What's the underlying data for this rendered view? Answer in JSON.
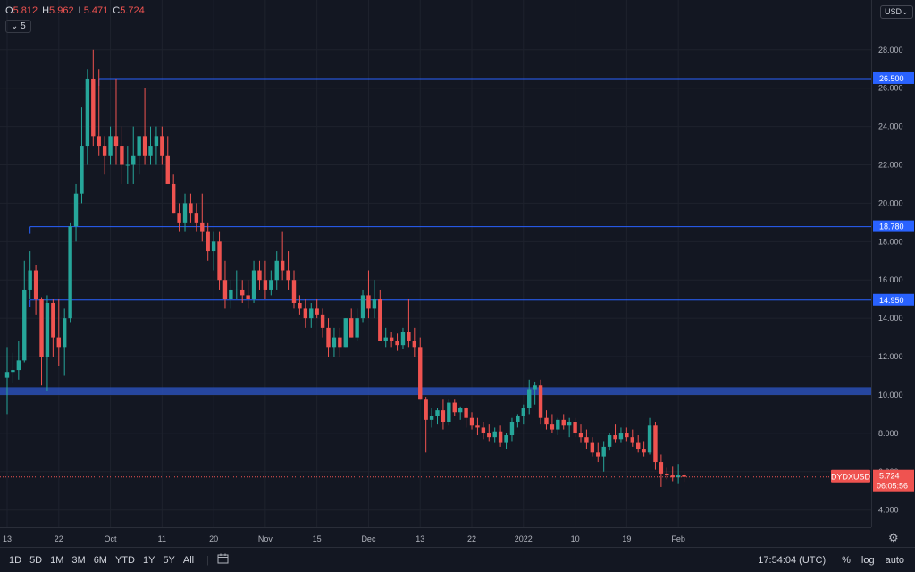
{
  "header": {
    "ohlc": [
      {
        "label": "O",
        "value": "5.812"
      },
      {
        "label": "H",
        "value": "5.962"
      },
      {
        "label": "L",
        "value": "5.471"
      },
      {
        "label": "C",
        "value": "5.724"
      }
    ],
    "interval_button": "5",
    "currency": "USD",
    "currency_chevron": "chevron-down-icon"
  },
  "chart_data": {
    "type": "candlestick",
    "symbol": "DYDXUSD",
    "last_price": "5.724",
    "countdown": "06:05:56",
    "y_ticks": [
      "28.000",
      "26.000",
      "24.000",
      "22.000",
      "20.000",
      "18.000",
      "16.000",
      "14.000",
      "12.000",
      "10.000",
      "8.000",
      "6.000",
      "4.000"
    ],
    "y_tick_values": [
      28,
      26,
      24,
      22,
      20,
      18,
      16,
      14,
      12,
      10,
      8,
      6,
      4
    ],
    "ylim": [
      3.1,
      30.6
    ],
    "x_ticks": [
      "13",
      "22",
      "Oct",
      "11",
      "20",
      "Nov",
      "15",
      "Dec",
      "13",
      "22",
      "2022",
      "10",
      "19",
      "Feb"
    ],
    "x_tick_index": [
      0,
      9,
      18,
      27,
      36,
      45,
      54,
      63,
      72,
      81,
      90,
      99,
      108,
      117
    ],
    "levels": [
      {
        "value": 26.5,
        "label": "26.500",
        "start_index": 16
      },
      {
        "value": 18.78,
        "label": "18.780",
        "start_index": 4
      },
      {
        "value": 14.95,
        "label": "14.950",
        "start_index": 4
      }
    ],
    "support_zone": [
      10.0,
      10.4
    ],
    "candles": [
      [
        10.9,
        12.5,
        9.0,
        11.2
      ],
      [
        11.2,
        12.2,
        10.6,
        11.3
      ],
      [
        11.3,
        12.8,
        10.8,
        11.8
      ],
      [
        11.8,
        17.0,
        11.7,
        15.5
      ],
      [
        15.5,
        17.5,
        15.0,
        16.5
      ],
      [
        16.5,
        16.8,
        14.2,
        15.0
      ],
      [
        15.0,
        15.1,
        10.5,
        12.0
      ],
      [
        12.0,
        15.2,
        10.2,
        14.8
      ],
      [
        14.8,
        15.0,
        12.0,
        13.0
      ],
      [
        13.0,
        15.0,
        11.5,
        12.5
      ],
      [
        12.5,
        14.5,
        11.0,
        14.0
      ],
      [
        14.0,
        19.0,
        13.8,
        18.8
      ],
      [
        18.8,
        21.0,
        18.0,
        20.5
      ],
      [
        20.5,
        25.0,
        20.0,
        23.0
      ],
      [
        23.0,
        27.0,
        22.0,
        26.5
      ],
      [
        26.5,
        28.0,
        23.0,
        23.5
      ],
      [
        23.5,
        27.0,
        22.5,
        23.0
      ],
      [
        23.0,
        23.5,
        21.5,
        22.5
      ],
      [
        22.5,
        24.0,
        22.0,
        23.5
      ],
      [
        23.5,
        26.5,
        22.0,
        23.0
      ],
      [
        23.0,
        24.0,
        21.0,
        22.0
      ],
      [
        22.0,
        23.0,
        21.0,
        22.0
      ],
      [
        22.0,
        24.0,
        21.0,
        22.5
      ],
      [
        22.5,
        23.5,
        21.5,
        23.5
      ],
      [
        23.5,
        26.0,
        22.0,
        22.5
      ],
      [
        22.5,
        24.0,
        22.0,
        23.0
      ],
      [
        23.0,
        24.0,
        22.0,
        23.5
      ],
      [
        23.5,
        24.0,
        22.0,
        22.5
      ],
      [
        22.5,
        23.5,
        21.0,
        21.0
      ],
      [
        21.0,
        21.5,
        19.5,
        19.5
      ],
      [
        19.5,
        20.0,
        18.5,
        19.0
      ],
      [
        19.0,
        20.5,
        18.5,
        20.0
      ],
      [
        20.0,
        20.5,
        19.0,
        19.5
      ],
      [
        19.5,
        20.0,
        18.5,
        19.0
      ],
      [
        19.0,
        20.5,
        18.0,
        18.5
      ],
      [
        18.5,
        19.0,
        17.0,
        17.5
      ],
      [
        17.5,
        18.5,
        16.5,
        18.0
      ],
      [
        18.0,
        18.5,
        15.5,
        16.0
      ],
      [
        16.0,
        17.0,
        14.5,
        15.0
      ],
      [
        15.0,
        16.0,
        14.5,
        15.5
      ],
      [
        15.5,
        16.5,
        15.0,
        15.5
      ],
      [
        15.5,
        16.0,
        14.8,
        15.2
      ],
      [
        15.2,
        16.0,
        14.5,
        15.0
      ],
      [
        15.0,
        17.0,
        14.8,
        16.5
      ],
      [
        16.5,
        17.0,
        15.5,
        16.0
      ],
      [
        16.0,
        17.0,
        15.0,
        15.5
      ],
      [
        15.5,
        16.5,
        15.2,
        16.0
      ],
      [
        16.0,
        17.5,
        15.5,
        17.0
      ],
      [
        17.0,
        18.5,
        16.0,
        16.5
      ],
      [
        16.5,
        17.5,
        15.5,
        16.0
      ],
      [
        16.0,
        16.5,
        14.5,
        14.8
      ],
      [
        14.8,
        15.2,
        14.2,
        14.5
      ],
      [
        14.5,
        15.0,
        13.5,
        14.0
      ],
      [
        14.0,
        14.8,
        13.5,
        14.5
      ],
      [
        14.5,
        15.0,
        14.0,
        14.2
      ],
      [
        14.2,
        14.5,
        13.0,
        13.5
      ],
      [
        13.5,
        14.0,
        12.0,
        12.5
      ],
      [
        12.5,
        13.5,
        12.0,
        13.0
      ],
      [
        13.0,
        13.5,
        12.0,
        12.5
      ],
      [
        12.5,
        14.0,
        12.5,
        14.0
      ],
      [
        14.0,
        14.5,
        13.0,
        13.0
      ],
      [
        13.0,
        14.5,
        12.8,
        14.0
      ],
      [
        14.0,
        15.5,
        13.8,
        15.2
      ],
      [
        15.2,
        16.5,
        14.0,
        14.5
      ],
      [
        14.5,
        16.0,
        14.0,
        15.0
      ],
      [
        15.0,
        15.5,
        13.0,
        12.8
      ],
      [
        12.8,
        13.5,
        12.5,
        13.0
      ],
      [
        13.0,
        13.3,
        12.5,
        12.8
      ],
      [
        12.8,
        13.2,
        12.3,
        12.6
      ],
      [
        12.6,
        13.5,
        12.4,
        13.3
      ],
      [
        13.3,
        15.0,
        12.5,
        12.8
      ],
      [
        12.8,
        13.5,
        12.0,
        12.5
      ],
      [
        12.5,
        13.0,
        9.8,
        9.8
      ],
      [
        9.8,
        9.9,
        7.0,
        8.7
      ],
      [
        8.7,
        9.3,
        8.3,
        8.9
      ],
      [
        8.9,
        9.3,
        8.5,
        9.2
      ],
      [
        9.2,
        9.8,
        8.2,
        8.6
      ],
      [
        8.6,
        9.8,
        8.4,
        9.6
      ],
      [
        9.6,
        9.8,
        8.9,
        9.1
      ],
      [
        9.1,
        9.4,
        8.7,
        9.3
      ],
      [
        9.3,
        9.4,
        8.3,
        8.8
      ],
      [
        8.8,
        9.1,
        8.2,
        8.4
      ],
      [
        8.4,
        8.8,
        7.9,
        8.3
      ],
      [
        8.3,
        8.6,
        7.7,
        8.0
      ],
      [
        8.0,
        8.5,
        7.6,
        7.8
      ],
      [
        7.8,
        8.3,
        7.5,
        8.1
      ],
      [
        8.1,
        8.4,
        7.3,
        7.5
      ],
      [
        7.5,
        8.0,
        7.2,
        7.9
      ],
      [
        7.9,
        8.8,
        7.6,
        8.6
      ],
      [
        8.6,
        9.0,
        8.3,
        8.9
      ],
      [
        8.9,
        9.5,
        8.5,
        9.3
      ],
      [
        9.3,
        10.8,
        9.0,
        10.3
      ],
      [
        10.3,
        10.7,
        9.5,
        10.5
      ],
      [
        10.5,
        10.8,
        8.5,
        8.8
      ],
      [
        8.8,
        9.2,
        8.2,
        8.5
      ],
      [
        8.5,
        9.0,
        8.0,
        8.2
      ],
      [
        8.2,
        8.8,
        7.9,
        8.7
      ],
      [
        8.7,
        9.0,
        8.2,
        8.4
      ],
      [
        8.4,
        8.8,
        7.8,
        8.6
      ],
      [
        8.6,
        8.8,
        7.8,
        8.0
      ],
      [
        8.0,
        8.5,
        7.5,
        7.8
      ],
      [
        7.8,
        8.2,
        7.2,
        7.5
      ],
      [
        7.5,
        7.8,
        6.8,
        7.0
      ],
      [
        7.0,
        7.5,
        6.5,
        6.8
      ],
      [
        6.8,
        7.6,
        6.0,
        7.3
      ],
      [
        7.3,
        8.0,
        7.1,
        7.9
      ],
      [
        7.9,
        8.5,
        7.5,
        7.7
      ],
      [
        7.7,
        8.3,
        7.5,
        8.0
      ],
      [
        8.0,
        8.3,
        7.6,
        7.8
      ],
      [
        7.8,
        8.2,
        7.3,
        7.5
      ],
      [
        7.5,
        7.9,
        7.0,
        7.2
      ],
      [
        7.2,
        7.6,
        6.8,
        7.0
      ],
      [
        7.0,
        8.8,
        6.9,
        8.4
      ],
      [
        8.4,
        8.6,
        6.1,
        6.5
      ],
      [
        6.5,
        6.9,
        5.2,
        5.9
      ],
      [
        5.9,
        6.2,
        5.6,
        5.8
      ],
      [
        5.8,
        6.3,
        5.5,
        5.7
      ],
      [
        5.7,
        6.4,
        5.4,
        5.8
      ],
      [
        5.812,
        5.962,
        5.471,
        5.724
      ]
    ],
    "colors": {
      "up": "#26a69a",
      "down": "#ef5350",
      "level": "#2962ff",
      "zone": "#2a4fb5"
    }
  },
  "bottom_bar": {
    "ranges": [
      "1D",
      "5D",
      "1M",
      "3M",
      "6M",
      "YTD",
      "1Y",
      "5Y",
      "All"
    ],
    "range_icon": "calendar-range-icon",
    "clock": "17:54:04 (UTC)",
    "percent": "%",
    "log": "log",
    "auto": "auto"
  },
  "settings_icon": "gear-icon"
}
